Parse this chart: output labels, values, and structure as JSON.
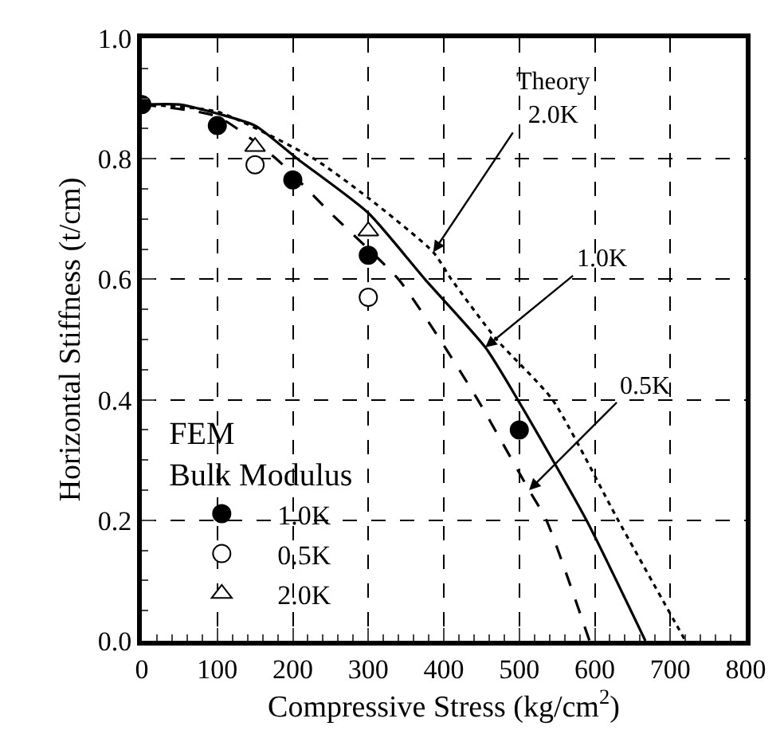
{
  "chart_data": {
    "type": "scatter",
    "xlabel": "Compressive Stress (kg/cm$^{2}$)",
    "ylabel": "Horizontal Stiffness (t/cm)",
    "legend_title": "FEM\nBulk Modulus",
    "legend": "bottom left",
    "grid": true,
    "xlim": [
      0,
      800
    ],
    "xticks": [
      0,
      100,
      200,
      300,
      400,
      500,
      600,
      700,
      800
    ],
    "ylim": [
      0,
      1
    ],
    "yticks": [
      {
        "value": 0,
        "label": "0.0"
      },
      {
        "value": 0.2,
        "label": "0.2"
      },
      {
        "value": 0.4,
        "label": "0.4"
      },
      {
        "value": 0.6,
        "label": "0.6"
      },
      {
        "value": 0.8,
        "label": "0.8"
      },
      {
        "value": 1,
        "label": "1.0"
      }
    ],
    "series": [
      {
        "type": "line",
        "color": "#000000",
        "marker": "none",
        "line_style": "solid",
        "x": [
          0,
          50,
          100,
          150,
          206,
          300,
          375,
          455,
          498,
          589,
          667
        ],
        "values": [
          0.89,
          0.89,
          0.875,
          0.855,
          0.8,
          0.71,
          0.6,
          0.487,
          0.4,
          0.2,
          0
        ]
      },
      {
        "type": "line",
        "color": "#000000",
        "marker": "none",
        "line_style": "dotted",
        "x": [
          0,
          100,
          228,
          300,
          386,
          410,
          470,
          544,
          631,
          720
        ],
        "values": [
          0.89,
          0.878,
          0.8,
          0.735,
          0.645,
          0.6,
          0.5,
          0.4,
          0.2,
          0
        ]
      },
      {
        "type": "line",
        "color": "#000000",
        "marker": "none",
        "line_style": "dashed",
        "x": [
          0,
          100,
          178,
          250,
          340,
          395,
          445,
          513,
          536,
          593
        ],
        "values": [
          0.89,
          0.87,
          0.8,
          0.71,
          0.6,
          0.5,
          0.4,
          0.25,
          0.2,
          0
        ]
      },
      {
        "name": "1.0K",
        "color": "#000000",
        "marker": "circle",
        "x": [
          0,
          100,
          200,
          300,
          500
        ],
        "values": [
          0.89,
          0.855,
          0.765,
          0.64,
          0.35
        ]
      },
      {
        "name": "0.5K",
        "color": "#ffffff",
        "marker": "circle",
        "x": [
          150,
          300
        ],
        "values": [
          0.79,
          0.57
        ]
      },
      {
        "name": "2.0K",
        "color": "#ffffff",
        "marker": "triangle",
        "x": [
          150,
          300
        ],
        "values": [
          0.82,
          0.68
        ]
      }
    ],
    "annotations": [
      {
        "text": "Theory\n2.0K",
        "x": 386,
        "y": 0.645
      },
      {
        "text": "1.0K",
        "x": 455,
        "y": 0.487
      },
      {
        "text": "0.5K",
        "x": 513,
        "y": 0.25
      }
    ]
  }
}
